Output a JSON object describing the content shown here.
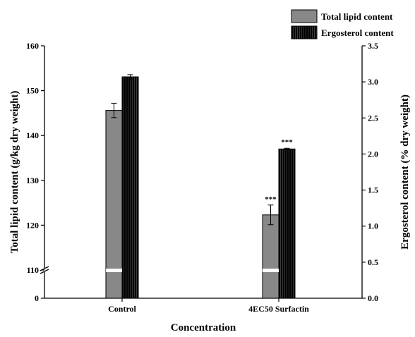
{
  "chart_data": {
    "type": "bar",
    "xlabel": "Concentration",
    "ylabel_left": "Total lipid content (g/kg dry weight)",
    "ylabel_right": "Ergosterol content (% dry weight)",
    "categories": [
      "Control",
      "4EC50 Surfactin"
    ],
    "left_axis": {
      "ticks": [
        0,
        110,
        120,
        130,
        140,
        150,
        160
      ],
      "broken": true,
      "break_between": [
        0,
        110
      ],
      "ylim_upper_segment": [
        110,
        160
      ]
    },
    "right_axis": {
      "ticks": [
        0.0,
        0.5,
        1.0,
        1.5,
        2.0,
        2.5,
        3.0,
        3.5
      ],
      "ylim": [
        0,
        3.5
      ]
    },
    "series": [
      {
        "name": "Total lipid content",
        "axis": "left",
        "color": "#888888",
        "values": [
          145.6,
          122.3
        ],
        "errors": [
          1.6,
          2.2
        ],
        "annotations": [
          "",
          "***"
        ]
      },
      {
        "name": "Ergosterol content",
        "axis": "right",
        "color": "#111111",
        "pattern": "vertical-stripes",
        "values": [
          3.07,
          2.07
        ],
        "errors": [
          0.03,
          0.01
        ],
        "annotations": [
          "",
          "***"
        ]
      }
    ],
    "legend_position": "top-right"
  }
}
